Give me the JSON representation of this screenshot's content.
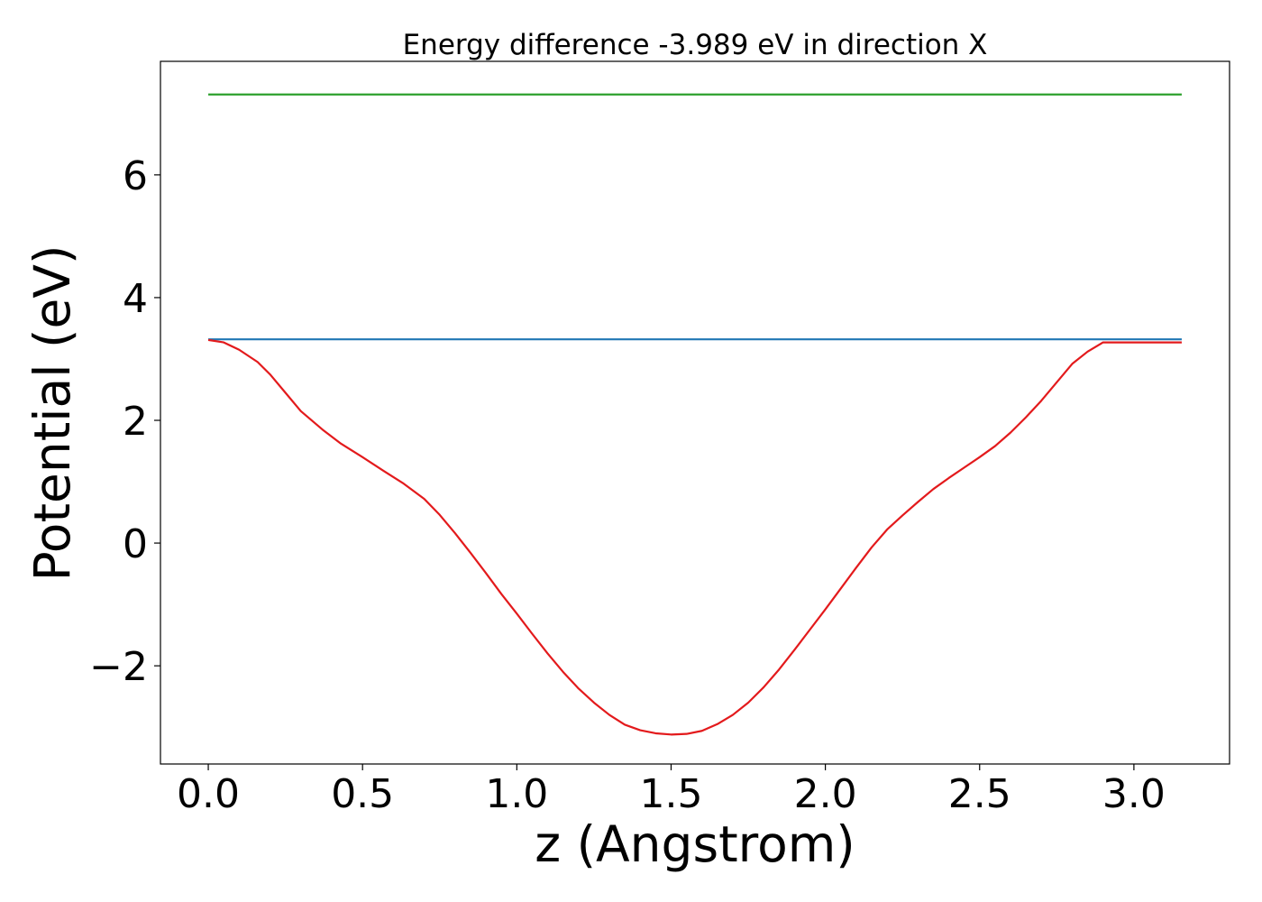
{
  "chart_data": {
    "type": "line",
    "title": "Energy difference -3.989 eV in direction X",
    "xlabel": "z (Angstrom)",
    "ylabel": "Potential (eV)",
    "xlim": [
      -0.155,
      3.31
    ],
    "ylim": [
      -3.6,
      7.85
    ],
    "grid": false,
    "x_ticks": [
      0.0,
      0.5,
      1.0,
      1.5,
      2.0,
      2.5,
      3.0
    ],
    "x_tick_labels": [
      "0.0",
      "0.5",
      "1.0",
      "1.5",
      "2.0",
      "2.5",
      "3.0"
    ],
    "y_ticks": [
      -2,
      0,
      2,
      4,
      6
    ],
    "y_tick_labels": [
      "−2",
      "0",
      "2",
      "4",
      "6"
    ],
    "series": [
      {
        "name": "green-level",
        "color": "#2ca02c",
        "x": [
          0.0,
          3.155
        ],
        "y": [
          7.31,
          7.31
        ]
      },
      {
        "name": "blue-level",
        "color": "#1f77b4",
        "x": [
          0.0,
          3.155
        ],
        "y": [
          3.32,
          3.32
        ]
      },
      {
        "name": "potential",
        "color": "#e31a1c",
        "x": [
          0.0,
          0.05,
          0.1,
          0.16,
          0.2,
          0.25,
          0.3,
          0.37,
          0.43,
          0.5,
          0.57,
          0.63,
          0.7,
          0.75,
          0.8,
          0.85,
          0.9,
          0.95,
          1.0,
          1.05,
          1.1,
          1.15,
          1.2,
          1.25,
          1.3,
          1.35,
          1.4,
          1.45,
          1.5,
          1.55,
          1.6,
          1.65,
          1.7,
          1.75,
          1.8,
          1.85,
          1.9,
          1.95,
          2.0,
          2.05,
          2.1,
          2.15,
          2.2,
          2.25,
          2.3,
          2.35,
          2.4,
          2.45,
          2.5,
          2.55,
          2.6,
          2.65,
          2.7,
          2.75,
          2.8,
          2.85,
          2.9,
          2.95,
          3.0,
          3.05,
          3.1,
          3.155
        ],
        "y": [
          3.31,
          3.27,
          3.15,
          2.95,
          2.75,
          2.45,
          2.15,
          1.85,
          1.62,
          1.4,
          1.17,
          0.98,
          0.72,
          0.46,
          0.16,
          -0.16,
          -0.49,
          -0.83,
          -1.15,
          -1.48,
          -1.8,
          -2.1,
          -2.37,
          -2.6,
          -2.8,
          -2.96,
          -3.05,
          -3.1,
          -3.12,
          -3.11,
          -3.06,
          -2.95,
          -2.8,
          -2.6,
          -2.35,
          -2.06,
          -1.74,
          -1.41,
          -1.08,
          -0.74,
          -0.4,
          -0.07,
          0.22,
          0.45,
          0.67,
          0.88,
          1.06,
          1.23,
          1.4,
          1.58,
          1.8,
          2.05,
          2.32,
          2.62,
          2.92,
          3.12,
          3.27,
          3.27,
          3.27,
          3.27,
          3.27,
          3.27
        ]
      }
    ]
  }
}
